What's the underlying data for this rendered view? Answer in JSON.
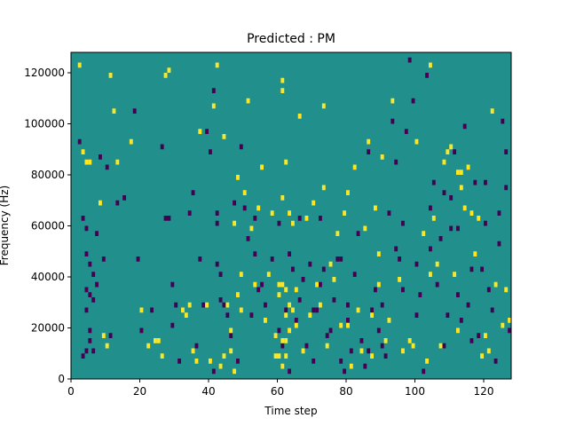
{
  "chart_data": {
    "type": "heatmap",
    "title": "Predicted : PM",
    "xlabel": "Time step",
    "ylabel": "Frequency (Hz)",
    "xlim": [
      0,
      128
    ],
    "ylim": [
      0,
      128000
    ],
    "xticks": [
      0,
      20,
      40,
      60,
      80,
      100,
      120
    ],
    "yticks": [
      0,
      20000,
      40000,
      60000,
      80000,
      100000,
      120000
    ],
    "xtick_labels": [
      "0",
      "20",
      "40",
      "60",
      "80",
      "100",
      "120"
    ],
    "ytick_labels": [
      "0",
      "20000",
      "40000",
      "60000",
      "80000",
      "100000",
      "120000"
    ],
    "grid": false,
    "colormap": "viridis",
    "colors": {
      "background": "#21908d",
      "low": "#440154",
      "high": "#fde725"
    },
    "bin_size": {
      "x": 1,
      "y": 2000
    },
    "high_cells": [
      [
        2,
        122000
      ],
      [
        3,
        88000
      ],
      [
        4,
        84000
      ],
      [
        5,
        84000
      ],
      [
        8,
        68000
      ],
      [
        9,
        16000
      ],
      [
        10,
        12000
      ],
      [
        11,
        118000
      ],
      [
        12,
        104000
      ],
      [
        13,
        84000
      ],
      [
        17,
        92000
      ],
      [
        20,
        26000
      ],
      [
        22,
        12000
      ],
      [
        24,
        14000
      ],
      [
        25,
        14000
      ],
      [
        26,
        8000
      ],
      [
        27,
        118000
      ],
      [
        28,
        120000
      ],
      [
        32,
        26000
      ],
      [
        33,
        24000
      ],
      [
        34,
        28000
      ],
      [
        35,
        10000
      ],
      [
        36,
        6000
      ],
      [
        37,
        96000
      ],
      [
        39,
        28000
      ],
      [
        40,
        6000
      ],
      [
        41,
        106000
      ],
      [
        42,
        122000
      ],
      [
        43,
        4000
      ],
      [
        44,
        8000
      ],
      [
        44,
        94000
      ],
      [
        45,
        28000
      ],
      [
        46,
        18000
      ],
      [
        46,
        10000
      ],
      [
        47,
        60000
      ],
      [
        47,
        2000
      ],
      [
        48,
        32000
      ],
      [
        48,
        78000
      ],
      [
        49,
        40000
      ],
      [
        49,
        26000
      ],
      [
        50,
        72000
      ],
      [
        51,
        108000
      ],
      [
        52,
        58000
      ],
      [
        53,
        36000
      ],
      [
        54,
        66000
      ],
      [
        55,
        82000
      ],
      [
        56,
        22000
      ],
      [
        57,
        40000
      ],
      [
        58,
        64000
      ],
      [
        59,
        16000
      ],
      [
        59,
        8000
      ],
      [
        60,
        8000
      ],
      [
        60,
        36000
      ],
      [
        60,
        32000
      ],
      [
        61,
        14000
      ],
      [
        61,
        36000
      ],
      [
        61,
        70000
      ],
      [
        61,
        4000
      ],
      [
        61,
        112000
      ],
      [
        61,
        116000
      ],
      [
        62,
        8000
      ],
      [
        62,
        14000
      ],
      [
        62,
        24000
      ],
      [
        62,
        34000
      ],
      [
        62,
        84000
      ],
      [
        63,
        18000
      ],
      [
        63,
        28000
      ],
      [
        63,
        64000
      ],
      [
        64,
        26000
      ],
      [
        64,
        60000
      ],
      [
        65,
        20000
      ],
      [
        65,
        34000
      ],
      [
        66,
        102000
      ],
      [
        67,
        10000
      ],
      [
        68,
        62000
      ],
      [
        69,
        24000
      ],
      [
        70,
        68000
      ],
      [
        71,
        36000
      ],
      [
        72,
        28000
      ],
      [
        73,
        106000
      ],
      [
        73,
        74000
      ],
      [
        74,
        12000
      ],
      [
        75,
        44000
      ],
      [
        76,
        38000
      ],
      [
        77,
        56000
      ],
      [
        78,
        20000
      ],
      [
        79,
        64000
      ],
      [
        80,
        20000
      ],
      [
        80,
        72000
      ],
      [
        81,
        4000
      ],
      [
        82,
        82000
      ],
      [
        83,
        26000
      ],
      [
        84,
        10000
      ],
      [
        85,
        58000
      ],
      [
        86,
        92000
      ],
      [
        87,
        8000
      ],
      [
        87,
        24000
      ],
      [
        88,
        66000
      ],
      [
        89,
        36000
      ],
      [
        89,
        48000
      ],
      [
        90,
        86000
      ],
      [
        91,
        14000
      ],
      [
        92,
        22000
      ],
      [
        93,
        108000
      ],
      [
        95,
        38000
      ],
      [
        96,
        10000
      ],
      [
        98,
        14000
      ],
      [
        99,
        12000
      ],
      [
        100,
        92000
      ],
      [
        102,
        56000
      ],
      [
        103,
        6000
      ],
      [
        104,
        40000
      ],
      [
        104,
        122000
      ],
      [
        105,
        62000
      ],
      [
        106,
        44000
      ],
      [
        107,
        12000
      ],
      [
        108,
        84000
      ],
      [
        109,
        88000
      ],
      [
        110,
        90000
      ],
      [
        111,
        40000
      ],
      [
        112,
        18000
      ],
      [
        113,
        74000
      ],
      [
        114,
        66000
      ],
      [
        115,
        82000
      ],
      [
        116,
        64000
      ],
      [
        117,
        48000
      ],
      [
        118,
        62000
      ],
      [
        119,
        8000
      ],
      [
        120,
        16000
      ],
      [
        121,
        10000
      ],
      [
        122,
        104000
      ],
      [
        123,
        36000
      ],
      [
        125,
        20000
      ],
      [
        126,
        34000
      ],
      [
        127,
        22000
      ],
      [
        112,
        80000
      ],
      [
        113,
        80000
      ]
    ],
    "low_cells": [
      [
        2,
        92000
      ],
      [
        3,
        62000
      ],
      [
        3,
        8000
      ],
      [
        4,
        58000
      ],
      [
        4,
        48000
      ],
      [
        4,
        34000
      ],
      [
        4,
        26000
      ],
      [
        4,
        10000
      ],
      [
        5,
        44000
      ],
      [
        5,
        32000
      ],
      [
        5,
        18000
      ],
      [
        5,
        14000
      ],
      [
        6,
        40000
      ],
      [
        6,
        30000
      ],
      [
        6,
        10000
      ],
      [
        7,
        56000
      ],
      [
        7,
        36000
      ],
      [
        8,
        86000
      ],
      [
        9,
        46000
      ],
      [
        10,
        82000
      ],
      [
        11,
        16000
      ],
      [
        13,
        68000
      ],
      [
        15,
        70000
      ],
      [
        18,
        104000
      ],
      [
        19,
        46000
      ],
      [
        20,
        18000
      ],
      [
        23,
        26000
      ],
      [
        26,
        90000
      ],
      [
        27,
        62000
      ],
      [
        28,
        62000
      ],
      [
        29,
        36000
      ],
      [
        29,
        20000
      ],
      [
        30,
        28000
      ],
      [
        31,
        6000
      ],
      [
        34,
        64000
      ],
      [
        35,
        72000
      ],
      [
        36,
        12000
      ],
      [
        37,
        46000
      ],
      [
        38,
        28000
      ],
      [
        39,
        96000
      ],
      [
        40,
        88000
      ],
      [
        41,
        2000
      ],
      [
        41,
        112000
      ],
      [
        42,
        64000
      ],
      [
        42,
        60000
      ],
      [
        43,
        40000
      ],
      [
        44,
        28000
      ],
      [
        45,
        24000
      ],
      [
        46,
        16000
      ],
      [
        47,
        68000
      ],
      [
        48,
        6000
      ],
      [
        49,
        90000
      ],
      [
        50,
        66000
      ],
      [
        51,
        54000
      ],
      [
        52,
        24000
      ],
      [
        53,
        48000
      ],
      [
        54,
        34000
      ],
      [
        56,
        28000
      ],
      [
        58,
        46000
      ],
      [
        60,
        60000
      ],
      [
        61,
        12000
      ],
      [
        62,
        26000
      ],
      [
        63,
        2000
      ],
      [
        64,
        42000
      ],
      [
        65,
        22000
      ],
      [
        66,
        30000
      ],
      [
        67,
        38000
      ],
      [
        68,
        12000
      ],
      [
        69,
        44000
      ],
      [
        70,
        6000
      ],
      [
        71,
        26000
      ],
      [
        72,
        62000
      ],
      [
        73,
        42000
      ],
      [
        74,
        16000
      ],
      [
        75,
        18000
      ],
      [
        76,
        30000
      ],
      [
        77,
        46000
      ],
      [
        78,
        6000
      ],
      [
        79,
        2000
      ],
      [
        80,
        22000
      ],
      [
        81,
        10000
      ],
      [
        82,
        40000
      ],
      [
        83,
        56000
      ],
      [
        84,
        14000
      ],
      [
        85,
        4000
      ],
      [
        86,
        88000
      ],
      [
        87,
        26000
      ],
      [
        88,
        34000
      ],
      [
        89,
        18000
      ],
      [
        90,
        12000
      ],
      [
        91,
        8000
      ],
      [
        92,
        64000
      ],
      [
        93,
        100000
      ],
      [
        94,
        84000
      ],
      [
        95,
        46000
      ],
      [
        96,
        60000
      ],
      [
        97,
        96000
      ],
      [
        98,
        124000
      ],
      [
        99,
        108000
      ],
      [
        100,
        44000
      ],
      [
        101,
        32000
      ],
      [
        102,
        2000
      ],
      [
        103,
        118000
      ],
      [
        104,
        66000
      ],
      [
        105,
        76000
      ],
      [
        106,
        36000
      ],
      [
        107,
        54000
      ],
      [
        108,
        12000
      ],
      [
        109,
        24000
      ],
      [
        110,
        70000
      ],
      [
        111,
        88000
      ],
      [
        112,
        58000
      ],
      [
        113,
        22000
      ],
      [
        114,
        98000
      ],
      [
        115,
        28000
      ],
      [
        116,
        14000
      ],
      [
        117,
        76000
      ],
      [
        118,
        16000
      ],
      [
        119,
        42000
      ],
      [
        120,
        60000
      ],
      [
        121,
        34000
      ],
      [
        122,
        26000
      ],
      [
        123,
        6000
      ],
      [
        124,
        52000
      ],
      [
        125,
        100000
      ],
      [
        126,
        74000
      ],
      [
        127,
        18000
      ],
      [
        42,
        44000
      ],
      [
        43,
        30000
      ],
      [
        53,
        62000
      ],
      [
        55,
        36000
      ],
      [
        60,
        18000
      ],
      [
        63,
        48000
      ],
      [
        66,
        62000
      ],
      [
        70,
        26000
      ],
      [
        72,
        36000
      ],
      [
        78,
        46000
      ],
      [
        80,
        28000
      ],
      [
        86,
        10000
      ],
      [
        90,
        28000
      ],
      [
        94,
        50000
      ],
      [
        96,
        34000
      ],
      [
        100,
        24000
      ],
      [
        104,
        50000
      ],
      [
        108,
        72000
      ],
      [
        110,
        58000
      ],
      [
        112,
        32000
      ],
      [
        116,
        42000
      ],
      [
        120,
        76000
      ],
      [
        124,
        64000
      ],
      [
        126,
        88000
      ]
    ]
  }
}
